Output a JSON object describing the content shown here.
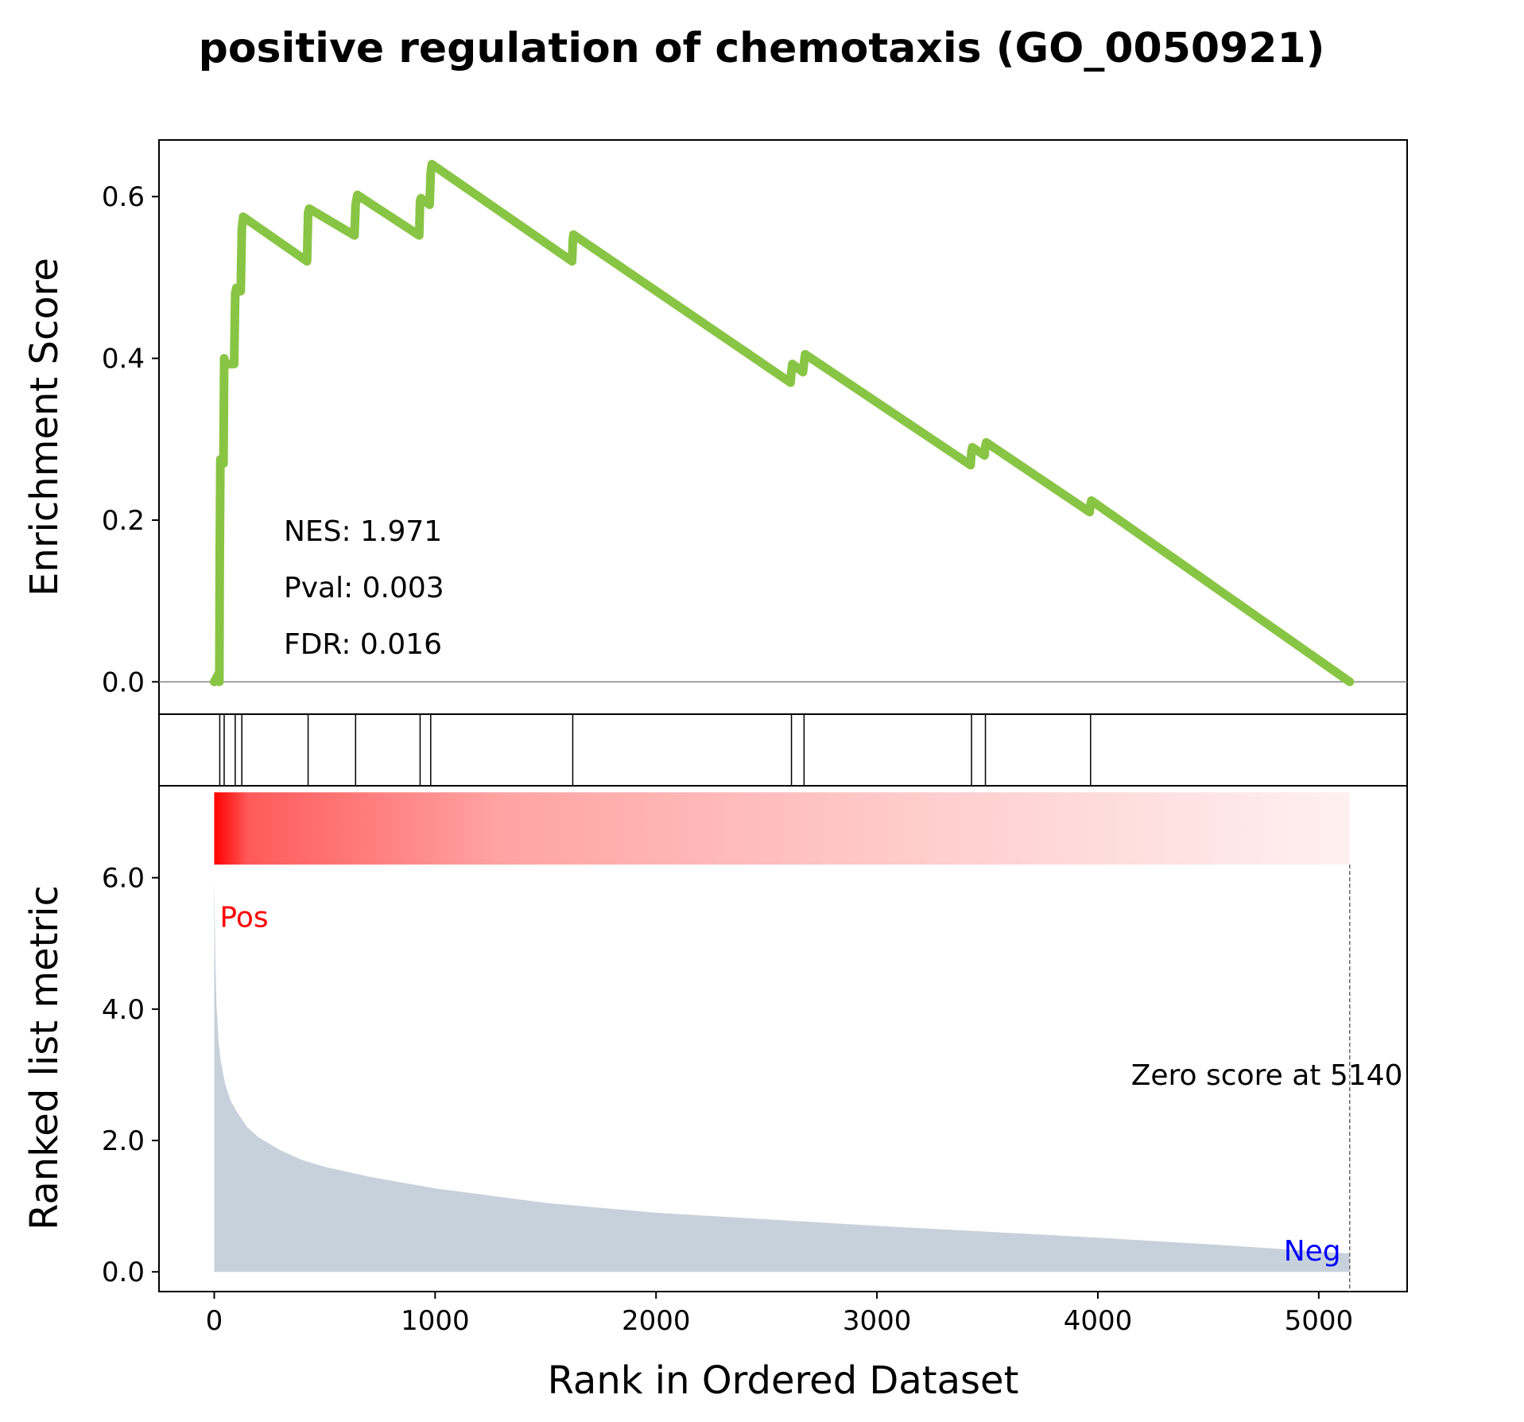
{
  "chart_data": {
    "type": "line",
    "title": "positive regulation of chemotaxis (GO_0050921)",
    "xlabel": "Rank in Ordered Dataset",
    "xlim": [
      -250,
      5400
    ],
    "xticks": [
      0,
      1000,
      2000,
      3000,
      4000,
      5000
    ],
    "panels": [
      {
        "name": "enrichment",
        "ylabel": "Enrichment Score",
        "ylim": [
          -0.04,
          0.67
        ],
        "yticks": [
          "0.0",
          "0.2",
          "0.4",
          "0.6"
        ],
        "ytick_values": [
          0,
          0.2,
          0.4,
          0.6
        ],
        "zero_line": true,
        "line_color": "#88c544",
        "series": [
          {
            "x": [
              0,
              20,
              23,
              25,
              28,
              42,
              45,
              48,
              50,
              90,
              95,
              100,
              118,
              120,
              125,
              131,
              420,
              425,
              430,
              635,
              640,
              648,
              928,
              932,
              936,
              975,
              980,
              985,
              1620,
              1623,
              1626,
              2609,
              2613,
              2617,
              2665,
              2670,
              2675,
              3424,
              3428,
              3432,
              3487,
              3491,
              3495,
              3963,
              3967,
              3971,
              5140
            ],
            "y": [
              0.0,
              0.01,
              0.0,
              0.15,
              0.275,
              0.27,
              0.4,
              0.395,
              0.393,
              0.393,
              0.48,
              0.487,
              0.485,
              0.483,
              0.56,
              0.575,
              0.52,
              0.58,
              0.585,
              0.552,
              0.59,
              0.602,
              0.552,
              0.595,
              0.598,
              0.59,
              0.63,
              0.64,
              0.52,
              0.545,
              0.553,
              0.37,
              0.385,
              0.393,
              0.383,
              0.395,
              0.405,
              0.268,
              0.285,
              0.29,
              0.28,
              0.292,
              0.296,
              0.21,
              0.22,
              0.224,
              0.0
            ]
          }
        ],
        "annotations": [
          {
            "text": "NES: 1.971"
          },
          {
            "text": "Pval: 0.003"
          },
          {
            "text": "FDR: 0.016"
          }
        ]
      },
      {
        "name": "hits",
        "hit_positions": [
          25,
          45,
          95,
          125,
          425,
          640,
          932,
          980,
          1623,
          2613,
          2670,
          3428,
          3491,
          3967
        ]
      },
      {
        "name": "ranked-metric",
        "ylabel": "Ranked list metric",
        "ylim": [
          -0.3,
          7.4
        ],
        "yticks": [
          "0.0",
          "2.0",
          "4.0",
          "6.0"
        ],
        "ytick_values": [
          0,
          2,
          4,
          6
        ],
        "fill_color": "#c6d1db",
        "series": [
          {
            "x": [
              0,
              5,
              10,
              20,
              30,
              50,
              75,
              100,
              150,
              200,
              300,
              400,
              500,
              700,
              1000,
              1500,
              2000,
              2500,
              3000,
              3500,
              4000,
              4500,
              5000,
              5140
            ],
            "y": [
              5.98,
              4.8,
              4.1,
              3.5,
              3.2,
              2.85,
              2.6,
              2.45,
              2.2,
              2.05,
              1.85,
              1.7,
              1.6,
              1.45,
              1.27,
              1.05,
              0.9,
              0.8,
              0.7,
              0.61,
              0.52,
              0.42,
              0.31,
              0.28
            ]
          }
        ],
        "colorbar": {
          "from_color": "#ff0000",
          "to_color": "#fff0f0"
        },
        "zero_score_rank": 5140,
        "annotations": [
          {
            "text": "Pos",
            "color": "#ff0000"
          },
          {
            "text": "Neg",
            "color": "#0000ff"
          },
          {
            "text": "Zero score at 5140",
            "color": "#000000"
          }
        ]
      }
    ]
  }
}
